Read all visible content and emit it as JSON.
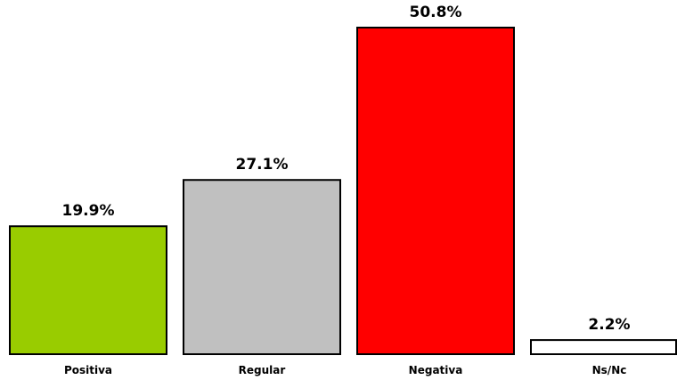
{
  "chart_data": {
    "type": "bar",
    "categories": [
      "Positiva",
      "Regular",
      "Negativa",
      "Ns/Nc"
    ],
    "values": [
      19.9,
      27.1,
      50.8,
      2.2
    ],
    "value_labels": [
      "19.9%",
      "27.1%",
      "50.8%",
      "2.2%"
    ],
    "colors": [
      "#99CC00",
      "#C0C0C0",
      "#FF0000",
      "#FFFFFF"
    ],
    "bar_edge_color": "#000000",
    "title": "",
    "xlabel": "",
    "ylabel": "",
    "grid": false,
    "ylim": [
      0,
      50.8
    ]
  }
}
